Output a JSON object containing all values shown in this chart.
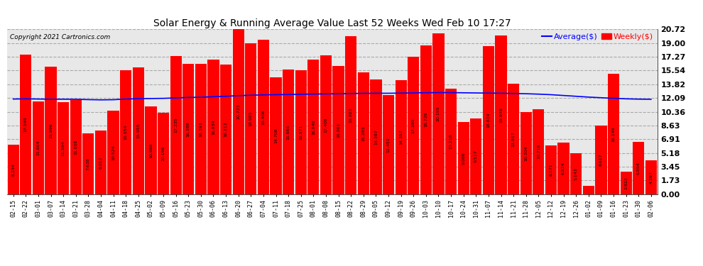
{
  "title": "Solar Energy & Running Average Value Last 52 Weeks Wed Feb 10 17:27",
  "copyright": "Copyright 2021 Cartronics.com",
  "bar_color": "#ff0000",
  "avg_line_color": "#0000ff",
  "background_color": "#ffffff",
  "plot_bg_color": "#e8e8e8",
  "grid_color": "#aaaaaa",
  "yticks": [
    0.0,
    1.73,
    3.45,
    5.18,
    6.91,
    8.63,
    10.36,
    12.09,
    13.82,
    15.54,
    17.27,
    19.0,
    20.72
  ],
  "ylim": [
    0,
    20.72
  ],
  "legend_avg": "Average($)",
  "legend_weekly": "Weekly($)",
  "categories": [
    "02-15",
    "02-22",
    "03-01",
    "03-07",
    "03-14",
    "03-21",
    "03-28",
    "04-04",
    "04-11",
    "04-18",
    "04-25",
    "05-02",
    "05-09",
    "05-16",
    "05-23",
    "05-30",
    "06-06",
    "06-13",
    "06-20",
    "06-27",
    "07-04",
    "07-11",
    "07-18",
    "07-25",
    "08-01",
    "08-08",
    "08-15",
    "08-22",
    "08-29",
    "09-05",
    "09-12",
    "09-19",
    "09-26",
    "10-03",
    "10-10",
    "10-17",
    "10-24",
    "10-31",
    "11-07",
    "11-14",
    "11-21",
    "11-28",
    "12-05",
    "12-12",
    "12-19",
    "12-26",
    "01-02",
    "01-09",
    "01-16",
    "01-23",
    "01-30",
    "02-06"
  ],
  "weekly_values": [
    6.234,
    17.549,
    11.664,
    15.996,
    11.594,
    11.858,
    7.638,
    8.012,
    10.524,
    15.554,
    15.955,
    10.988,
    10.196,
    17.335,
    16.388,
    16.393,
    16.934,
    16.313,
    20.723,
    18.983,
    19.406,
    14.706,
    15.666,
    15.571,
    16.94,
    17.408,
    16.081,
    19.883,
    15.283,
    14.397,
    12.452,
    14.357,
    17.285,
    18.726,
    20.195,
    13.218,
    9.086,
    9.517,
    18.639,
    19.978,
    13.917,
    10.304,
    10.716,
    6.171,
    6.514,
    5.143,
    1.079,
    8.617,
    15.149,
    2.822,
    6.594,
    4.297
  ],
  "avg_values": [
    11.95,
    11.98,
    11.95,
    11.93,
    11.93,
    11.92,
    11.88,
    11.85,
    11.87,
    11.95,
    12.0,
    12.02,
    12.04,
    12.1,
    12.15,
    12.18,
    12.25,
    12.3,
    12.38,
    12.43,
    12.48,
    12.5,
    12.52,
    12.55,
    12.58,
    12.6,
    12.62,
    12.65,
    12.67,
    12.68,
    12.68,
    12.7,
    12.73,
    12.75,
    12.76,
    12.76,
    12.74,
    12.72,
    12.7,
    12.68,
    12.65,
    12.62,
    12.57,
    12.5,
    12.4,
    12.3,
    12.2,
    12.12,
    12.05,
    11.98,
    11.94,
    11.92
  ]
}
